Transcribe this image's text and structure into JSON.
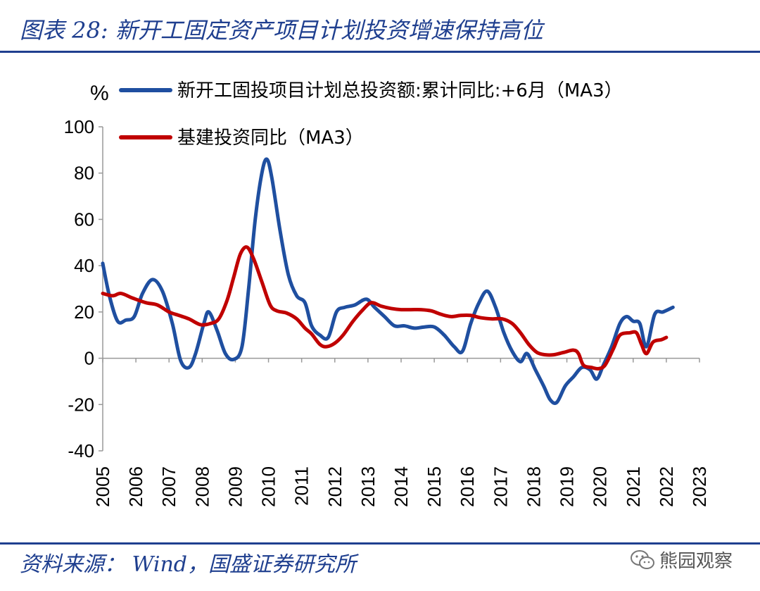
{
  "figure": {
    "title": "图表 28:  新开工固定资产项目计划投资增速保持高位",
    "source": "资料来源： Wind，国盛证券研究所",
    "watermark": "熊园观察"
  },
  "colors": {
    "series1": "#1f4fa0",
    "series2": "#c00000",
    "rule": "#1f3f8f"
  },
  "chart_data": {
    "type": "line",
    "title": "",
    "ylabel": "%",
    "xlabel": "",
    "ylim": [
      -40,
      100
    ],
    "yticks": [
      -40,
      -20,
      0,
      20,
      40,
      60,
      80,
      100
    ],
    "xlim": [
      2005,
      2023
    ],
    "xticks": [
      "2005",
      "2006",
      "2007",
      "2008",
      "2009",
      "2010",
      "2011",
      "2012",
      "2013",
      "2014",
      "2015",
      "2016",
      "2017",
      "2018",
      "2019",
      "2020",
      "2021",
      "2022",
      "2023"
    ],
    "legend": [
      "新开工固投项目计划总投资额:累计同比:+6月（MA3）",
      "基建投资同比（MA3）"
    ],
    "series": [
      {
        "name": "新开工固投项目计划总投资额:累计同比:+6月（MA3）",
        "points": [
          [
            2005.0,
            41
          ],
          [
            2005.2,
            27
          ],
          [
            2005.45,
            16
          ],
          [
            2005.7,
            16.5
          ],
          [
            2005.95,
            18
          ],
          [
            2006.2,
            28
          ],
          [
            2006.5,
            34
          ],
          [
            2006.8,
            29
          ],
          [
            2007.1,
            15
          ],
          [
            2007.35,
            -1
          ],
          [
            2007.6,
            -4
          ],
          [
            2007.8,
            2
          ],
          [
            2008.05,
            15
          ],
          [
            2008.2,
            20
          ],
          [
            2008.45,
            12
          ],
          [
            2008.7,
            2
          ],
          [
            2008.95,
            -0.5
          ],
          [
            2009.2,
            5
          ],
          [
            2009.4,
            30
          ],
          [
            2009.6,
            60
          ],
          [
            2009.8,
            80
          ],
          [
            2009.95,
            86
          ],
          [
            2010.1,
            78
          ],
          [
            2010.35,
            55
          ],
          [
            2010.6,
            36
          ],
          [
            2010.85,
            27
          ],
          [
            2011.1,
            24
          ],
          [
            2011.3,
            14
          ],
          [
            2011.55,
            10
          ],
          [
            2011.8,
            9
          ],
          [
            2012.05,
            20
          ],
          [
            2012.3,
            22
          ],
          [
            2012.6,
            23
          ],
          [
            2012.95,
            25.5
          ],
          [
            2013.2,
            22
          ],
          [
            2013.5,
            18
          ],
          [
            2013.8,
            14
          ],
          [
            2014.1,
            14
          ],
          [
            2014.4,
            13
          ],
          [
            2014.7,
            13.5
          ],
          [
            2015.0,
            13.5
          ],
          [
            2015.3,
            10
          ],
          [
            2015.6,
            5
          ],
          [
            2015.85,
            3
          ],
          [
            2016.1,
            15
          ],
          [
            2016.35,
            24
          ],
          [
            2016.6,
            29
          ],
          [
            2016.85,
            22
          ],
          [
            2017.1,
            11
          ],
          [
            2017.35,
            3
          ],
          [
            2017.6,
            -1.5
          ],
          [
            2017.8,
            2
          ],
          [
            2018.05,
            -5
          ],
          [
            2018.3,
            -12
          ],
          [
            2018.5,
            -18
          ],
          [
            2018.7,
            -19
          ],
          [
            2018.95,
            -12
          ],
          [
            2019.2,
            -8
          ],
          [
            2019.45,
            -4
          ],
          [
            2019.7,
            -5
          ],
          [
            2019.9,
            -9
          ],
          [
            2020.1,
            -3
          ],
          [
            2020.35,
            5
          ],
          [
            2020.6,
            15
          ],
          [
            2020.8,
            18
          ],
          [
            2021.0,
            16
          ],
          [
            2021.2,
            15
          ],
          [
            2021.4,
            5
          ],
          [
            2021.65,
            19
          ],
          [
            2021.9,
            20
          ],
          [
            2022.2,
            22
          ]
        ]
      },
      {
        "name": "基建投资同比（MA3）",
        "points": [
          [
            2005.0,
            28
          ],
          [
            2005.3,
            27
          ],
          [
            2005.55,
            28
          ],
          [
            2005.9,
            26
          ],
          [
            2006.3,
            24
          ],
          [
            2006.65,
            23
          ],
          [
            2007.0,
            20
          ],
          [
            2007.3,
            18.5
          ],
          [
            2007.6,
            17
          ],
          [
            2007.95,
            14.5
          ],
          [
            2008.25,
            15
          ],
          [
            2008.5,
            17
          ],
          [
            2008.75,
            25
          ],
          [
            2008.95,
            35
          ],
          [
            2009.15,
            45
          ],
          [
            2009.35,
            48
          ],
          [
            2009.55,
            43
          ],
          [
            2009.8,
            33
          ],
          [
            2010.05,
            23
          ],
          [
            2010.25,
            20.5
          ],
          [
            2010.55,
            19.5
          ],
          [
            2010.85,
            17
          ],
          [
            2011.1,
            13
          ],
          [
            2011.3,
            10.5
          ],
          [
            2011.55,
            6
          ],
          [
            2011.75,
            5
          ],
          [
            2012.0,
            6.5
          ],
          [
            2012.25,
            10
          ],
          [
            2012.55,
            16
          ],
          [
            2012.85,
            21
          ],
          [
            2013.1,
            24
          ],
          [
            2013.4,
            22.5
          ],
          [
            2013.7,
            21.5
          ],
          [
            2014.0,
            21
          ],
          [
            2014.3,
            21
          ],
          [
            2014.6,
            21
          ],
          [
            2014.9,
            20.5
          ],
          [
            2015.2,
            19
          ],
          [
            2015.5,
            18
          ],
          [
            2015.8,
            18.5
          ],
          [
            2016.1,
            18.5
          ],
          [
            2016.4,
            17.5
          ],
          [
            2016.75,
            17
          ],
          [
            2017.05,
            17
          ],
          [
            2017.35,
            15
          ],
          [
            2017.6,
            11
          ],
          [
            2017.85,
            6
          ],
          [
            2018.1,
            2.5
          ],
          [
            2018.35,
            1.5
          ],
          [
            2018.6,
            1.5
          ],
          [
            2018.9,
            2.5
          ],
          [
            2019.2,
            3.5
          ],
          [
            2019.35,
            2
          ],
          [
            2019.5,
            -3
          ],
          [
            2019.75,
            -4
          ],
          [
            2019.95,
            -4.5
          ],
          [
            2020.15,
            -3
          ],
          [
            2020.4,
            4
          ],
          [
            2020.6,
            10
          ],
          [
            2020.9,
            11
          ],
          [
            2021.1,
            11
          ],
          [
            2021.25,
            6
          ],
          [
            2021.4,
            2
          ],
          [
            2021.6,
            7
          ],
          [
            2021.85,
            8
          ],
          [
            2022.0,
            9
          ]
        ]
      }
    ]
  }
}
